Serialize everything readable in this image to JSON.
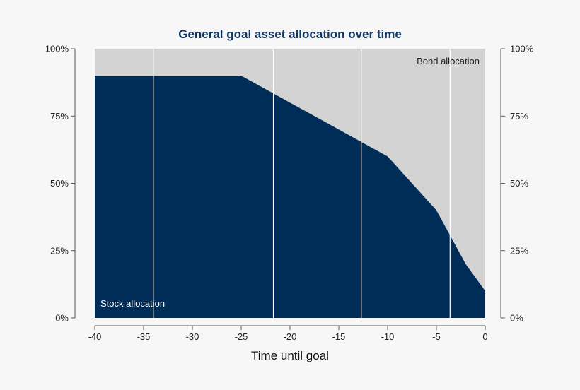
{
  "chart_data": {
    "type": "area",
    "title": "General goal asset allocation over time",
    "xlabel": "Time until goal",
    "ylabel": "",
    "xlim": [
      -40,
      0
    ],
    "ylim": [
      0,
      100
    ],
    "x_ticks": [
      "-40",
      "-35",
      "-30",
      "-25",
      "-20",
      "-15",
      "-10",
      "-5",
      "0"
    ],
    "x_tick_values": [
      -40,
      -35,
      -30,
      -25,
      -20,
      -15,
      -10,
      -5,
      0
    ],
    "y_ticks": [
      "0%",
      "25%",
      "50%",
      "75%",
      "100%"
    ],
    "y_tick_values": [
      0,
      25,
      50,
      75,
      100
    ],
    "stacked": true,
    "series": [
      {
        "name": "Stock allocation",
        "x": [
          -40,
          -25,
          -20,
          -15,
          -10,
          -8,
          -5,
          -2,
          0
        ],
        "values": [
          90,
          90,
          80,
          70,
          60,
          52,
          40,
          20,
          10
        ]
      },
      {
        "name": "Bond allocation",
        "x": [
          -40,
          -25,
          -20,
          -15,
          -10,
          -8,
          -5,
          -2,
          0
        ],
        "values": [
          10,
          10,
          20,
          30,
          40,
          48,
          60,
          80,
          90
        ]
      }
    ],
    "vertical_markers": [
      -34,
      -21.7,
      -12.7,
      -3.6
    ],
    "colors": {
      "stock": "#002d57",
      "bond": "#d3d3d3",
      "title": "#0f3763",
      "marker": "#ffffff",
      "axis": "#555555",
      "stock_label": "#ffffff",
      "bond_label": "#222222"
    },
    "grid": false,
    "legend": "none"
  }
}
